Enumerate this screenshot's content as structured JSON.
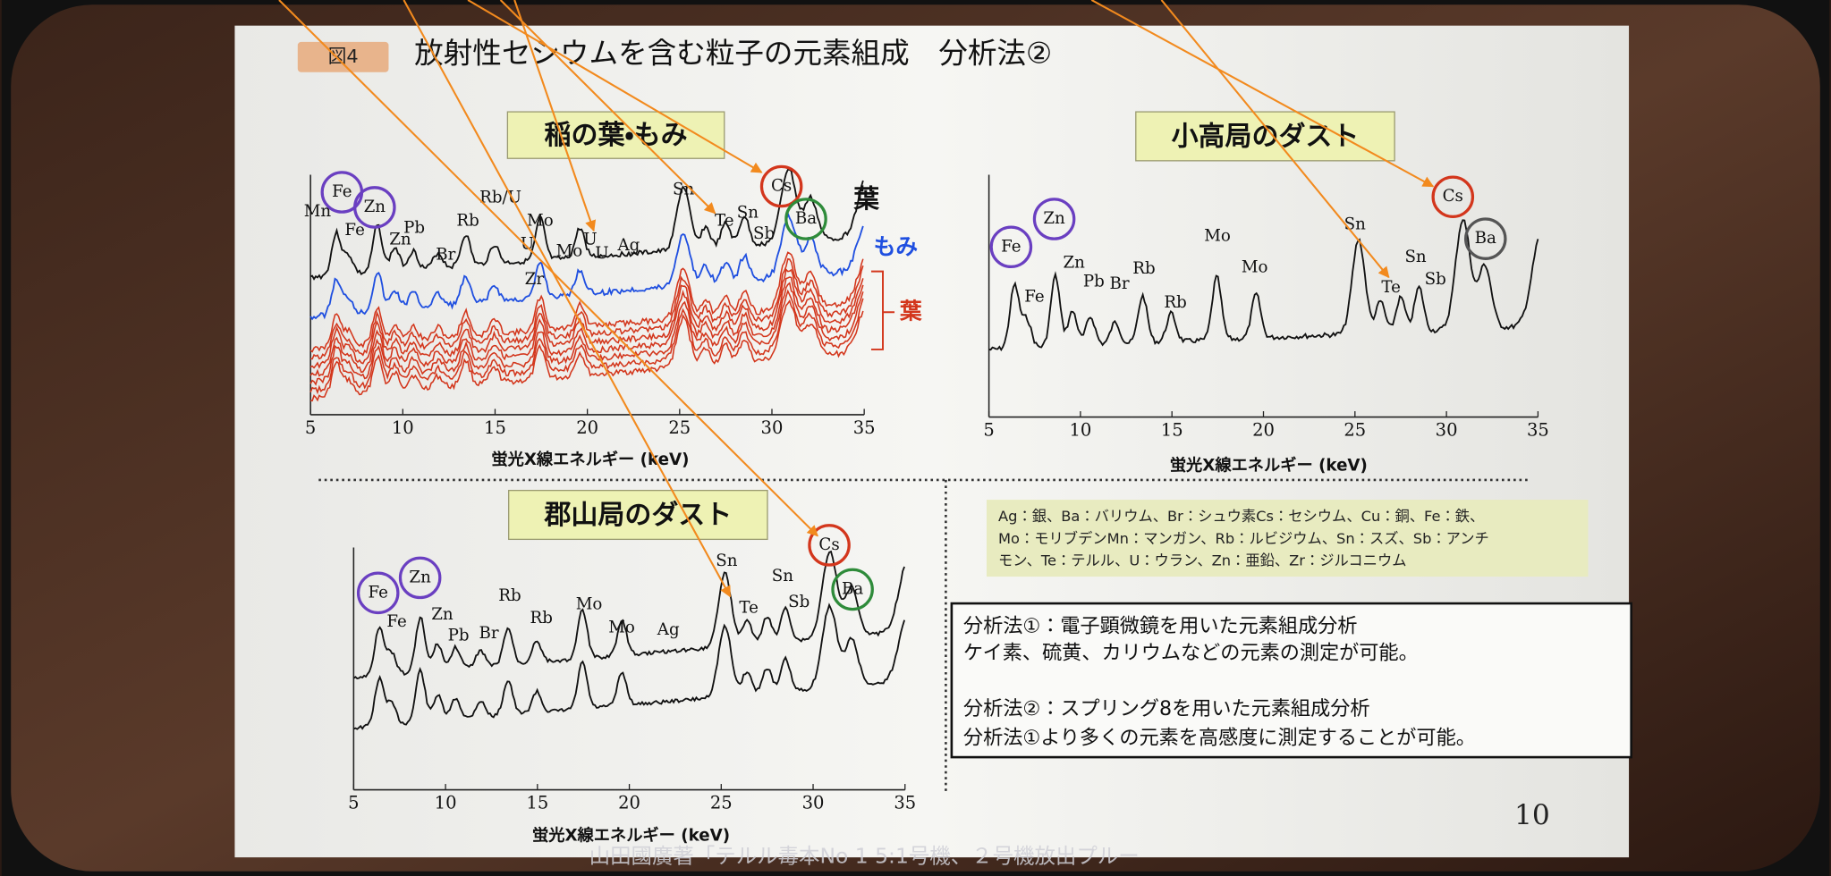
{
  "header": {
    "figure_label": "図4",
    "title": "放射性セシウムを含む粒子の元素組成　分析法②"
  },
  "panels": [
    {
      "title": "稲の葉・もみ",
      "x_ticks": [
        "5",
        "10",
        "15",
        "20",
        "25",
        "30",
        "35"
      ],
      "x_axis_label": "蛍光X線エネルギー (keV)",
      "peak_labels": [
        "Mn",
        "Fe",
        "Zn",
        "Fe",
        "Zn",
        "Pb",
        "Rb",
        "Br",
        "Rb/U",
        "Mo",
        "U",
        "Mo",
        "U",
        "U",
        "Ag",
        "Zr",
        "Sn",
        "Te",
        "Sn",
        "Sb",
        "Cs",
        "Ba"
      ],
      "legend": [
        "葉",
        "もみ",
        "葉"
      ]
    },
    {
      "title": "小高局のダスト",
      "x_ticks": [
        "5",
        "10",
        "15",
        "20",
        "25",
        "30",
        "35"
      ],
      "x_axis_label": "蛍光X線エネルギー (keV)",
      "peak_labels": [
        "Fe",
        "Zn",
        "Zn",
        "Fe",
        "Pb",
        "Br",
        "Rb",
        "Rb",
        "Mo",
        "Mo",
        "Sn",
        "Te",
        "Sn",
        "Sb",
        "Cs",
        "Ba"
      ]
    },
    {
      "title": "郡山局のダスト",
      "x_ticks": [
        "5",
        "10",
        "15",
        "20",
        "25",
        "30",
        "35"
      ],
      "x_axis_label": "蛍光X線エネルギー (keV)",
      "peak_labels": [
        "Fe",
        "Zn",
        "Fe",
        "Zn",
        "Pb",
        "Br",
        "Rb",
        "Rb",
        "Mo",
        "Mo",
        "Ag",
        "Sn",
        "Te",
        "Sn",
        "Sb",
        "Cs",
        "Ba"
      ]
    }
  ],
  "abbreviations": [
    "Ag：銀、Ba：バリウム、Br：シュウ素Cs：セシウム、Cu：銅、Fe：鉄、",
    "Mo：モリブデンMn：マンガン、Rb：ルビジウム、Sn：スズ、Sb：アンチ",
    "モン、Te：テルル、U：ウラン、Zn：亜鉛、Zr：ジルコニウム"
  ],
  "methods": [
    "分析法①：電子顕微鏡を用いた元素組成分析",
    "ケイ素、硫黄、カリウムなどの元素の測定が可能。",
    "分析法②：スプリング8を用いた元素組成分析",
    "分析法①より多くの元素を高感度に測定することが可能。"
  ],
  "page_number": "10",
  "caption": "山田國廣著「テルル毒本No 1 5:1号機、２号機放出プルー"
}
